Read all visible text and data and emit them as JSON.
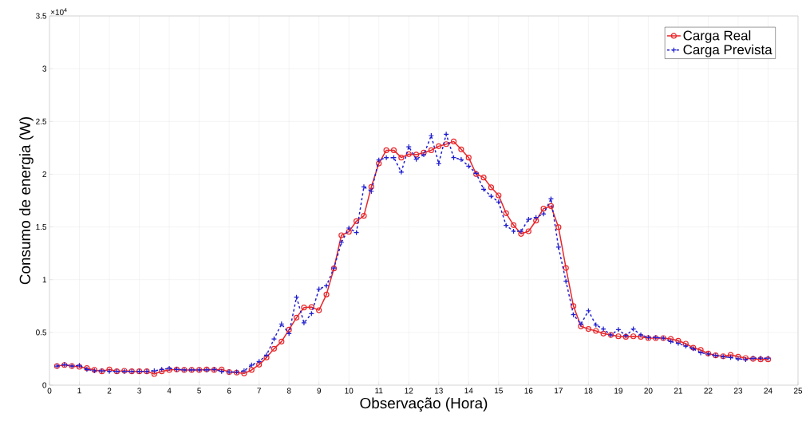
{
  "chart_data": {
    "type": "line",
    "xlabel": "Observação (Hora)",
    "ylabel": "Consumo de energia (W)",
    "annotations": [
      "×10$^{4}$"
    ],
    "x": [
      0.25,
      0.5,
      0.75,
      1,
      1.25,
      1.5,
      1.75,
      2,
      2.25,
      2.5,
      2.75,
      3,
      3.25,
      3.5,
      3.75,
      4,
      4.25,
      4.5,
      4.75,
      5,
      5.25,
      5.5,
      5.75,
      6,
      6.25,
      6.5,
      6.75,
      7,
      7.25,
      7.5,
      7.75,
      8,
      8.25,
      8.5,
      8.75,
      9,
      9.25,
      9.5,
      9.75,
      10,
      10.25,
      10.5,
      10.75,
      11,
      11.25,
      11.5,
      11.75,
      12,
      12.25,
      12.5,
      12.75,
      13,
      13.25,
      13.5,
      13.75,
      14,
      14.25,
      14.5,
      14.75,
      15,
      15.25,
      15.5,
      15.75,
      16,
      16.25,
      16.5,
      16.75,
      17,
      17.25,
      17.5,
      17.75,
      18,
      18.25,
      18.5,
      18.75,
      19,
      19.25,
      19.5,
      19.75,
      20,
      20.25,
      20.5,
      20.75,
      21,
      21.25,
      21.5,
      21.75,
      22,
      22.25,
      22.5,
      22.75,
      23,
      23.25,
      23.5,
      23.75,
      24
    ],
    "series": [
      {
        "name": "Carga Real",
        "color": "#e8262a",
        "marker": "circle",
        "line_style": "solid",
        "values": [
          0.181,
          0.191,
          0.181,
          0.174,
          0.161,
          0.144,
          0.131,
          0.149,
          0.131,
          0.136,
          0.131,
          0.131,
          0.131,
          0.106,
          0.131,
          0.144,
          0.149,
          0.144,
          0.144,
          0.144,
          0.149,
          0.144,
          0.149,
          0.124,
          0.119,
          0.111,
          0.144,
          0.194,
          0.262,
          0.345,
          0.413,
          0.526,
          0.64,
          0.736,
          0.74,
          0.71,
          0.859,
          1.106,
          1.421,
          1.454,
          1.555,
          1.605,
          1.88,
          2.101,
          2.227,
          2.227,
          2.157,
          2.19,
          2.185,
          2.204,
          2.227,
          2.265,
          2.285,
          2.31,
          2.235,
          2.157,
          2.001,
          1.968,
          1.875,
          1.799,
          1.63,
          1.517,
          1.434,
          1.459,
          1.559,
          1.673,
          1.698,
          1.497,
          1.111,
          0.75,
          0.557,
          0.532,
          0.514,
          0.489,
          0.476,
          0.463,
          0.458,
          0.463,
          0.458,
          0.446,
          0.446,
          0.446,
          0.438,
          0.421,
          0.393,
          0.355,
          0.333,
          0.3,
          0.282,
          0.274,
          0.287,
          0.27,
          0.257,
          0.249,
          0.244,
          0.244
        ]
      },
      {
        "name": "Carga Prevista",
        "color": "#1f1fd0",
        "marker": "cross",
        "line_style": "dashed",
        "values": [
          0.181,
          0.194,
          0.181,
          0.187,
          0.149,
          0.136,
          0.136,
          0.131,
          0.131,
          0.131,
          0.131,
          0.131,
          0.131,
          0.136,
          0.149,
          0.159,
          0.149,
          0.144,
          0.144,
          0.144,
          0.144,
          0.149,
          0.131,
          0.124,
          0.124,
          0.136,
          0.19,
          0.224,
          0.285,
          0.438,
          0.58,
          0.489,
          0.834,
          0.59,
          0.678,
          0.91,
          0.942,
          1.111,
          1.353,
          1.489,
          1.446,
          1.88,
          1.837,
          2.134,
          2.157,
          2.157,
          2.02,
          2.26,
          2.142,
          2.184,
          2.366,
          2.101,
          2.379,
          2.157,
          2.139,
          2.076,
          2.008,
          1.857,
          1.791,
          1.736,
          1.514,
          1.459,
          1.459,
          1.572,
          1.59,
          1.623,
          1.766,
          1.308,
          0.985,
          0.668,
          0.579,
          0.705,
          0.57,
          0.532,
          0.476,
          0.527,
          0.469,
          0.532,
          0.476,
          0.451,
          0.451,
          0.446,
          0.413,
          0.396,
          0.37,
          0.345,
          0.307,
          0.295,
          0.28,
          0.27,
          0.262,
          0.249,
          0.242,
          0.255,
          0.255,
          0.255
        ]
      }
    ],
    "xlim": [
      0,
      25
    ],
    "ylim": [
      0,
      3.5
    ],
    "xticks": [
      0,
      1,
      2,
      3,
      4,
      5,
      6,
      7,
      8,
      9,
      10,
      11,
      12,
      13,
      14,
      15,
      16,
      17,
      18,
      19,
      20,
      21,
      22,
      23,
      24,
      25
    ],
    "yticks": [
      0,
      0.5,
      1,
      1.5,
      2,
      2.5,
      3,
      3.5
    ],
    "grid": true,
    "legend": "top right"
  }
}
